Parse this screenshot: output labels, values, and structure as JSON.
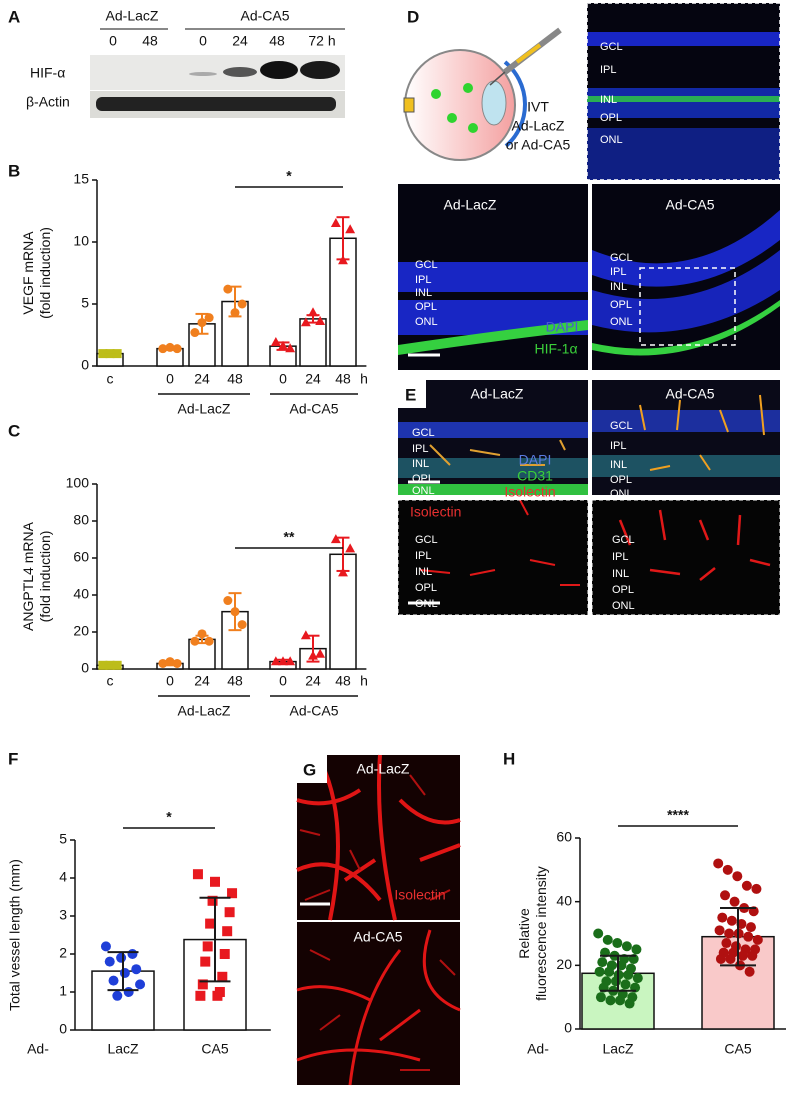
{
  "panel_labels": [
    "A",
    "B",
    "C",
    "D",
    "E",
    "F",
    "G",
    "H"
  ],
  "blot": {
    "groups": [
      "Ad-LacZ",
      "Ad-CA5"
    ],
    "lanes": [
      "0",
      "48",
      "0",
      "24",
      "48",
      "72 h"
    ],
    "rows": [
      "HIF-α",
      "β-Actin"
    ]
  },
  "schematic": {
    "route": "IVT",
    "treatments": [
      "Ad-LacZ",
      "or Ad-CA5"
    ]
  },
  "retina_layers": [
    "GCL",
    "IPL",
    "INL",
    "OPL",
    "ONL"
  ],
  "panel_d": {
    "titles": [
      "Ad-LacZ",
      "Ad-CA5"
    ],
    "stains": [
      "DAPI",
      "HIF-1α"
    ]
  },
  "panel_e": {
    "titles": [
      "Ad-LacZ",
      "Ad-CA5"
    ],
    "stains": [
      "DAPI",
      "CD31",
      "Isolectin"
    ]
  },
  "panel_g": {
    "titles": [
      "Ad-LacZ",
      "Ad-CA5"
    ],
    "stain": "Isolectin"
  },
  "chart_data": [
    {
      "type": "bar",
      "ylabel": [
        "VEGF mRNA",
        "(fold induction)"
      ],
      "categories": [
        "c",
        "0",
        "24",
        "48",
        "0",
        "24",
        "48"
      ],
      "unit": "h",
      "groups": [
        "Ad-LacZ",
        "Ad-CA5"
      ],
      "values": [
        1.0,
        1.4,
        3.4,
        5.2,
        1.6,
        3.8,
        10.3
      ],
      "errors": [
        0.1,
        0.1,
        0.8,
        1.2,
        0.3,
        0.3,
        1.7
      ],
      "points": [
        [
          1.0,
          1.0,
          1.0
        ],
        [
          1.4,
          1.5,
          1.4
        ],
        [
          2.7,
          3.5,
          3.9
        ],
        [
          6.2,
          4.3,
          5.0
        ],
        [
          1.9,
          1.6,
          1.4
        ],
        [
          3.5,
          4.3,
          3.6
        ],
        [
          11.5,
          8.5,
          11.0
        ]
      ],
      "colors": [
        "#bdbd1a",
        "#f07f1e",
        "#f07f1e",
        "#f07f1e",
        "#e8191f",
        "#e8191f",
        "#e8191f"
      ],
      "markers": [
        "square",
        "circle",
        "circle",
        "circle",
        "triangle",
        "triangle",
        "triangle"
      ],
      "significance": "*",
      "ylim": [
        0,
        15
      ],
      "yticks": [
        0,
        5,
        10,
        15
      ]
    },
    {
      "type": "bar",
      "ylabel": [
        "ANGPTL4 mRNA",
        "(fold induction)"
      ],
      "categories": [
        "c",
        "0",
        "24",
        "48",
        "0",
        "24",
        "48"
      ],
      "unit": "h",
      "groups": [
        "Ad-LacZ",
        "Ad-CA5"
      ],
      "values": [
        2,
        3,
        16,
        31,
        4,
        11,
        62
      ],
      "errors": [
        1,
        1,
        2,
        10,
        1,
        7,
        9
      ],
      "points": [
        [
          2,
          2,
          2
        ],
        [
          3,
          4,
          3
        ],
        [
          15,
          19,
          15
        ],
        [
          37,
          31,
          24
        ],
        [
          4,
          4,
          4
        ],
        [
          18,
          7,
          8
        ],
        [
          70,
          52,
          65
        ]
      ],
      "colors": [
        "#bdbd1a",
        "#f07f1e",
        "#f07f1e",
        "#f07f1e",
        "#e8191f",
        "#e8191f",
        "#e8191f"
      ],
      "markers": [
        "square",
        "circle",
        "circle",
        "circle",
        "triangle",
        "triangle",
        "triangle"
      ],
      "significance": "**",
      "ylim": [
        0,
        100
      ],
      "yticks": [
        0,
        20,
        40,
        60,
        80,
        100
      ]
    },
    {
      "type": "bar",
      "ylabel": [
        "Total vessel length (mm)"
      ],
      "prefix": "Ad-",
      "categories": [
        "LacZ",
        "CA5"
      ],
      "values": [
        1.55,
        2.38
      ],
      "errors": [
        0.5,
        1.1
      ],
      "points": [
        [
          2.2,
          2.0,
          1.9,
          1.8,
          1.6,
          1.5,
          1.3,
          1.2,
          1.0,
          0.9
        ],
        [
          4.1,
          3.9,
          3.6,
          3.4,
          3.1,
          2.8,
          2.6,
          2.2,
          2.0,
          1.8,
          1.4,
          1.2,
          1.0,
          0.9,
          0.9
        ]
      ],
      "colors": [
        "#1f3fd8",
        "#e8191f"
      ],
      "markers": [
        "circle",
        "square"
      ],
      "error_color": "#1a1a1a",
      "significance": "*",
      "ylim": [
        0,
        5
      ],
      "yticks": [
        0,
        1,
        2,
        3,
        4,
        5
      ]
    },
    {
      "type": "bar",
      "ylabel": [
        "Relative",
        "fluorescence intensity"
      ],
      "prefix": "Ad-",
      "categories": [
        "LacZ",
        "CA5"
      ],
      "values": [
        17.5,
        29
      ],
      "errors": [
        5.5,
        9
      ],
      "points": [
        [
          30,
          28,
          27,
          26,
          25,
          24,
          23,
          22,
          22,
          21,
          20,
          20,
          19,
          18,
          18,
          17,
          17,
          16,
          15,
          15,
          14,
          13,
          13,
          12,
          11,
          10,
          10,
          9,
          9,
          8
        ],
        [
          52,
          50,
          48,
          45,
          44,
          42,
          40,
          38,
          37,
          35,
          34,
          33,
          32,
          31,
          30,
          30,
          29,
          28,
          27,
          26,
          25,
          25,
          24,
          24,
          23,
          23,
          22,
          22,
          20,
          18
        ]
      ],
      "colors": [
        "#1a6e1a",
        "#b01010"
      ],
      "bar_colors": [
        "#c9f5c0",
        "#f9c9c9"
      ],
      "markers": [
        "circle",
        "circle"
      ],
      "error_color": "#1a1a1a",
      "significance": "****",
      "ylim": [
        0,
        60
      ],
      "yticks": [
        0,
        20,
        40,
        60
      ]
    }
  ]
}
